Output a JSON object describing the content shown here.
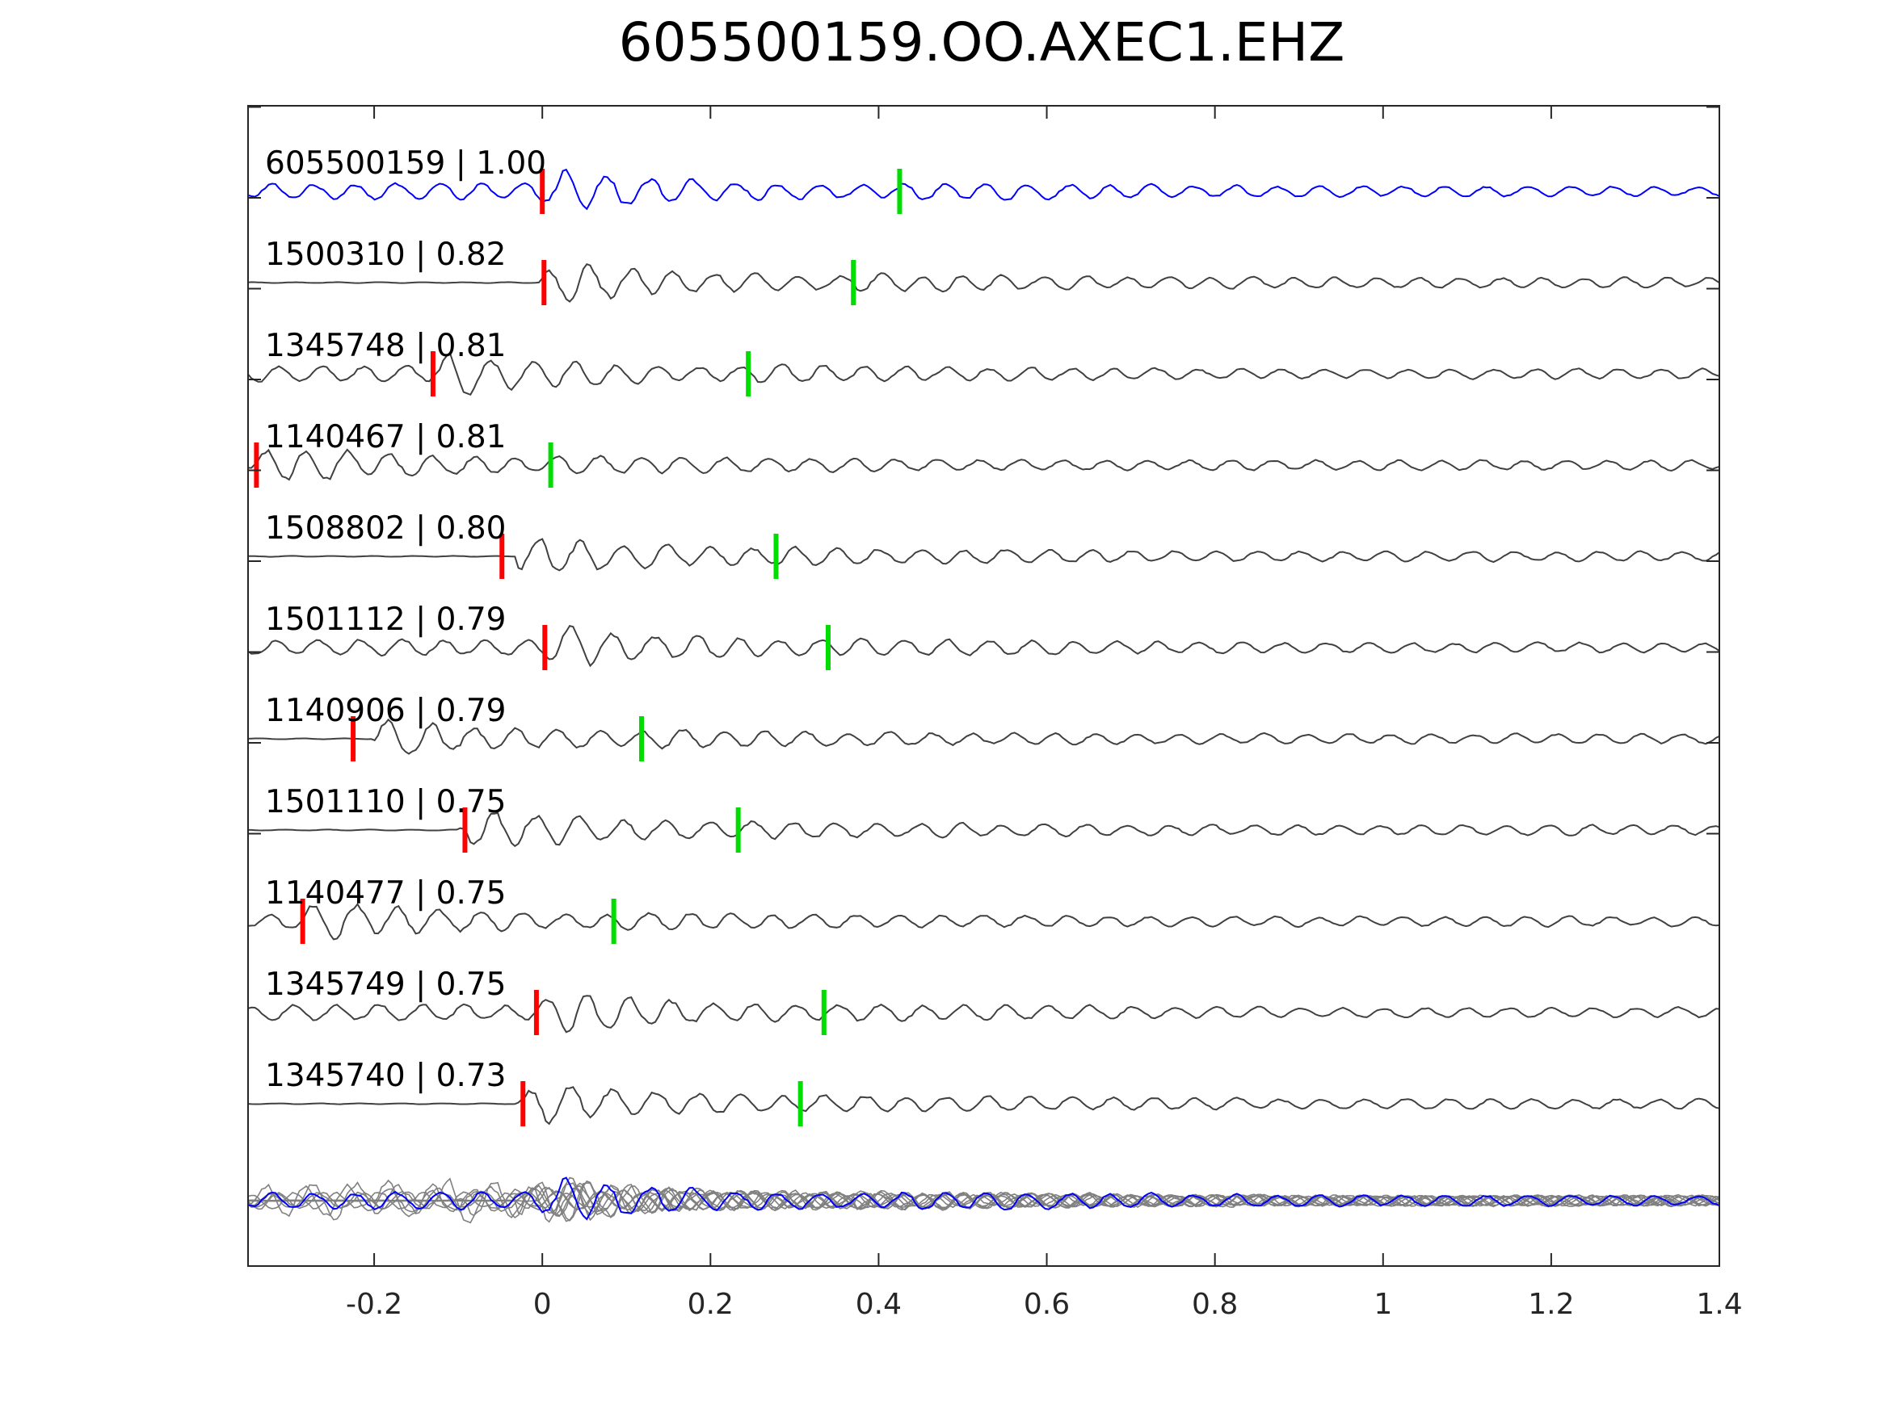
{
  "chart_data": {
    "type": "line",
    "title": "605500159.OO.AXEC1.EHZ",
    "xlabel": "",
    "ylabel": "",
    "xlim": [
      -0.35,
      1.4
    ],
    "x_ticks": [
      -0.2,
      0,
      0.2,
      0.4,
      0.6,
      0.8,
      1,
      1.2,
      1.4
    ],
    "x_tick_labels": [
      "-0.2",
      "0",
      "0.2",
      "0.4",
      "0.6",
      "0.8",
      "1",
      "1.2",
      "1.4"
    ],
    "grid": false,
    "legend": "none",
    "colors": {
      "template": "#0000ff",
      "match": "#404040",
      "overlay": "#808080",
      "p_pick": "#ff0000",
      "s_pick": "#00dd00",
      "axes": "#262626"
    },
    "series": [
      {
        "label": "605500159 | 1.00",
        "p_pick": 0.0,
        "s_pick": 0.425,
        "onset": -0.35,
        "color": "template"
      },
      {
        "label": "1500310 | 0.82",
        "p_pick": 0.002,
        "s_pick": 0.37,
        "onset": 0.0,
        "color": "match"
      },
      {
        "label": "1345748 | 0.81",
        "p_pick": -0.13,
        "s_pick": 0.245,
        "onset": -0.35,
        "color": "match"
      },
      {
        "label": "1140467 | 0.81",
        "p_pick": -0.34,
        "s_pick": 0.01,
        "onset": -0.35,
        "color": "match"
      },
      {
        "label": "1508802 | 0.80",
        "p_pick": -0.048,
        "s_pick": 0.278,
        "onset": -0.03,
        "color": "match"
      },
      {
        "label": "1501112 | 0.79",
        "p_pick": 0.003,
        "s_pick": 0.34,
        "onset": -0.35,
        "color": "match"
      },
      {
        "label": "1140906 | 0.79",
        "p_pick": -0.225,
        "s_pick": 0.118,
        "onset": -0.2,
        "color": "match"
      },
      {
        "label": "1501110 | 0.75",
        "p_pick": -0.092,
        "s_pick": 0.233,
        "onset": -0.1,
        "color": "match"
      },
      {
        "label": "1140477 | 0.75",
        "p_pick": -0.285,
        "s_pick": 0.085,
        "onset": -0.35,
        "color": "match"
      },
      {
        "label": "1345749 | 0.75",
        "p_pick": -0.007,
        "s_pick": 0.335,
        "onset": -0.35,
        "color": "match"
      },
      {
        "label": "1345740 | 0.73",
        "p_pick": -0.023,
        "s_pick": 0.307,
        "onset": -0.03,
        "color": "match"
      }
    ]
  }
}
